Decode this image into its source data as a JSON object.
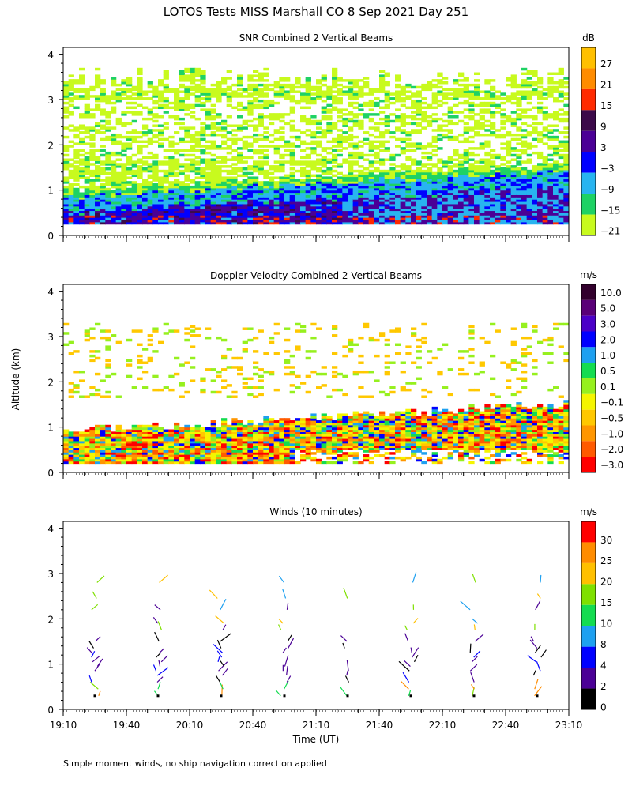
{
  "figure": {
    "title": "LOTOS Tests MISS Marshall CO   8 Sep 2021 Day 251",
    "y_axis_label": "Altitude (km)",
    "x_axis_label": "Time (UT)",
    "footnote": "Simple moment winds, no ship navigation correction applied"
  },
  "chart_data": [
    {
      "type": "heatmap",
      "title": "SNR Combined 2 Vertical Beams",
      "ylabel": "Altitude (km)",
      "ylim": [
        0,
        4
      ],
      "yticks": [
        "0",
        "1",
        "2",
        "3",
        "4"
      ],
      "x_range_minutes": [
        0,
        240
      ],
      "colorbar": {
        "unit": "dB",
        "labels": [
          "27",
          "21",
          "15",
          "9",
          "3",
          "−3",
          "−9",
          "−15",
          "−21"
        ],
        "colors": [
          "#ffc000",
          "#ff8c00",
          "#ff2a00",
          "#3c0a4a",
          "#4b0096",
          "#0000ff",
          "#28b4f0",
          "#1ed264",
          "#c8fa1e"
        ]
      },
      "layers": [
        {
          "name": "strong echo layer (3 to 9 dB)",
          "base_km": 0.25,
          "top_km_start": 0.8,
          "top_km_end": 1.2
        },
        {
          "name": "moderate layer (−9 to −3 dB)",
          "top_km_start": 0.95,
          "top_km_end": 1.45
        },
        {
          "name": "weak scattered echoes (−21 to −15 dB)",
          "base_km": 1.4,
          "top_km": 3.7
        }
      ]
    },
    {
      "type": "heatmap",
      "title": "Doppler Velocity Combined 2 Vertical Beams",
      "ylabel": "Altitude (km)",
      "ylim": [
        0,
        4
      ],
      "yticks": [
        "0",
        "1",
        "2",
        "3",
        "4"
      ],
      "x_range_minutes": [
        0,
        240
      ],
      "colorbar": {
        "unit": "m/s",
        "labels": [
          "10.0",
          "5.0",
          "3.0",
          "2.0",
          "1.0",
          "0.5",
          "0.1",
          "−0.1",
          "−0.5",
          "−1.0",
          "−2.0",
          "−3.0"
        ],
        "colors": [
          "#32002d",
          "#5a0078",
          "#4b00c8",
          "#0000ff",
          "#1ea0f0",
          "#14dc50",
          "#96f01e",
          "#f5f500",
          "#ffc800",
          "#ff9600",
          "#ff5a00",
          "#ff0000"
        ]
      },
      "layers": [
        {
          "name": "boundary layer mixed velocities",
          "base_km": 0.2,
          "top_km_start": 0.85,
          "top_km_end": 1.5
        },
        {
          "name": "sparse upper echoes",
          "base_km": 1.6,
          "top_km": 3.3
        }
      ]
    },
    {
      "type": "scatter",
      "title": "Winds (10 minutes)",
      "ylabel": "Altitude (km)",
      "xlabel": "Time (UT)",
      "ylim": [
        0,
        4
      ],
      "yticks": [
        "0",
        "1",
        "2",
        "3",
        "4"
      ],
      "xticks": [
        "19:10",
        "19:40",
        "20:10",
        "20:40",
        "21:10",
        "21:40",
        "22:10",
        "22:40",
        "23:10"
      ],
      "x_range_minutes": [
        0,
        240
      ],
      "colorbar": {
        "unit": "m/s",
        "labels": [
          "30",
          "25",
          "20",
          "15",
          "10",
          "8",
          "4",
          "2",
          "0"
        ],
        "colors": [
          "#ff0000",
          "#ff8c00",
          "#ffc000",
          "#7fe000",
          "#14dc50",
          "#1ea0f0",
          "#0000ff",
          "#4b0096",
          "#000000"
        ]
      },
      "profile_times_minutes": [
        15,
        45,
        75,
        105,
        135,
        165,
        195,
        225
      ]
    }
  ]
}
